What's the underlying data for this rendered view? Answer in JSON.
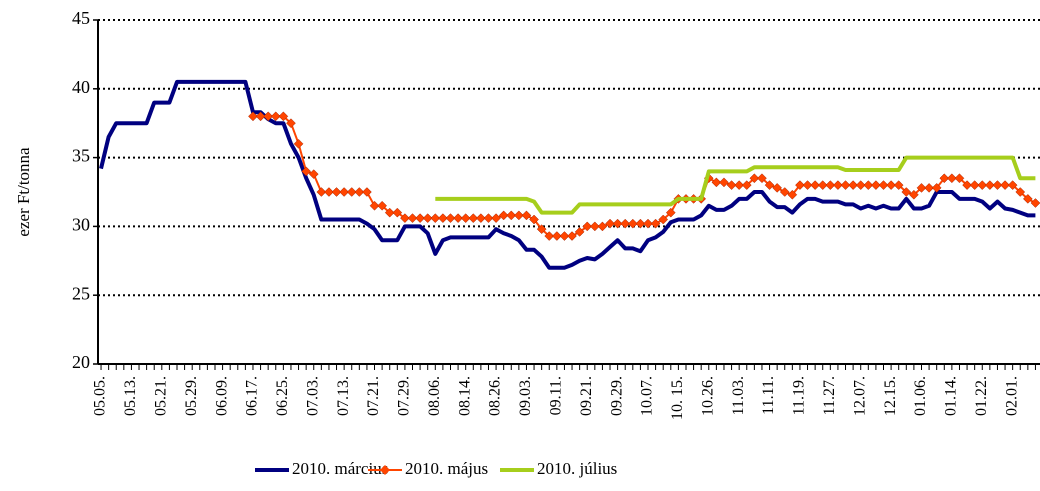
{
  "chart_data": {
    "type": "line",
    "y_label": "ezer Ft/tonna",
    "ylim": [
      20,
      45
    ],
    "yticks": [
      20,
      25,
      30,
      35,
      40,
      45
    ],
    "grid": true,
    "legend": "bottom",
    "categories": [
      "05.05.",
      null,
      null,
      null,
      "05.13.",
      null,
      null,
      null,
      "05.21.",
      null,
      null,
      null,
      "05.29.",
      null,
      null,
      null,
      "06.09.",
      null,
      null,
      null,
      "06.17.",
      null,
      null,
      null,
      "06.25.",
      null,
      null,
      null,
      "07.03.",
      null,
      null,
      null,
      "07.13.",
      null,
      null,
      null,
      "07.21.",
      null,
      null,
      null,
      "07.29.",
      null,
      null,
      null,
      "08.06.",
      null,
      null,
      null,
      "08.14.",
      null,
      null,
      null,
      "08.26.",
      null,
      null,
      null,
      "09.03.",
      null,
      null,
      null,
      "09.11.",
      null,
      null,
      null,
      "09.21.",
      null,
      null,
      null,
      "09.29.",
      null,
      null,
      null,
      "10.07.",
      null,
      null,
      null,
      "10. 15.",
      null,
      null,
      null,
      "10.26.",
      null,
      null,
      null,
      "11.03.",
      null,
      null,
      null,
      "11.11.",
      null,
      null,
      null,
      "11.19.",
      null,
      null,
      null,
      "11.27.",
      null,
      null,
      null,
      "12.07.",
      null,
      null,
      null,
      "12.15.",
      null,
      null,
      null,
      "01.06.",
      null,
      null,
      null,
      "01.14.",
      null,
      null,
      null,
      "01.22.",
      null,
      null,
      null,
      "02.01.",
      null,
      null,
      null
    ],
    "series": [
      {
        "name": "2010. március",
        "color": "#000080",
        "values": [
          34.2,
          36.5,
          37.5,
          37.5,
          37.5,
          37.5,
          37.5,
          39,
          39,
          39,
          40.5,
          40.5,
          40.5,
          40.5,
          40.5,
          40.5,
          40.5,
          40.5,
          40.5,
          40.5,
          38.3,
          38.3,
          37.8,
          37.5,
          37.5,
          36,
          35,
          33.5,
          32.3,
          30.5,
          30.5,
          30.5,
          30.5,
          30.5,
          30.5,
          30.2,
          29.8,
          29,
          29,
          29,
          30,
          30,
          30,
          29.5,
          28,
          29,
          29.2,
          29.2,
          29.2,
          29.2,
          29.2,
          29.2,
          29.8,
          29.5,
          29.3,
          29,
          28.3,
          28.3,
          27.8,
          27,
          27,
          27,
          27.2,
          27.5,
          27.7,
          27.6,
          28,
          28.5,
          29,
          28.4,
          28.4,
          28.2,
          29,
          29.2,
          29.6,
          30.3,
          30.5,
          30.5,
          30.5,
          30.8,
          31.5,
          31.2,
          31.2,
          31.5,
          32,
          32,
          32.5,
          32.5,
          31.8,
          31.4,
          31.4,
          31,
          31.6,
          32,
          32,
          31.8,
          31.8,
          31.8,
          31.6,
          31.6,
          31.3,
          31.5,
          31.3,
          31.5,
          31.3,
          31.3,
          32,
          31.3,
          31.3,
          31.5,
          32.5,
          32.5,
          32.5,
          32,
          32,
          32,
          31.8,
          31.3,
          31.8,
          31.3,
          31.2,
          31,
          30.8,
          30.8
        ]
      },
      {
        "name": "2010. május",
        "color": "#ff4500",
        "marker": "diamond",
        "values": [
          null,
          null,
          null,
          null,
          null,
          null,
          null,
          null,
          null,
          null,
          null,
          null,
          null,
          null,
          null,
          null,
          null,
          null,
          null,
          null,
          38,
          38,
          38,
          38,
          38,
          37.5,
          36,
          34,
          33.8,
          32.5,
          32.5,
          32.5,
          32.5,
          32.5,
          32.5,
          32.5,
          31.5,
          31.5,
          31,
          31,
          30.6,
          30.6,
          30.6,
          30.6,
          30.6,
          30.6,
          30.6,
          30.6,
          30.6,
          30.6,
          30.6,
          30.6,
          30.6,
          30.8,
          30.8,
          30.8,
          30.8,
          30.5,
          29.8,
          29.3,
          29.3,
          29.3,
          29.3,
          29.6,
          30,
          30,
          30,
          30.2,
          30.2,
          30.2,
          30.2,
          30.2,
          30.2,
          30.2,
          30.5,
          31,
          32,
          32,
          32,
          32,
          33.5,
          33.2,
          33.2,
          33,
          33,
          33,
          33.5,
          33.5,
          33,
          32.8,
          32.5,
          32.3,
          33,
          33,
          33,
          33,
          33,
          33,
          33,
          33,
          33,
          33,
          33,
          33,
          33,
          33,
          32.5,
          32.3,
          32.8,
          32.8,
          32.8,
          33.5,
          33.5,
          33.5,
          33,
          33,
          33,
          33,
          33,
          33,
          33,
          32.5,
          32,
          31.7
        ]
      },
      {
        "name": "2010. július",
        "color": "#a6ce1c",
        "values": [
          null,
          null,
          null,
          null,
          null,
          null,
          null,
          null,
          null,
          null,
          null,
          null,
          null,
          null,
          null,
          null,
          null,
          null,
          null,
          null,
          null,
          null,
          null,
          null,
          null,
          null,
          null,
          null,
          null,
          null,
          null,
          null,
          null,
          null,
          null,
          null,
          null,
          null,
          null,
          null,
          null,
          null,
          null,
          null,
          32,
          32,
          32,
          32,
          32,
          32,
          32,
          32,
          32,
          32,
          32,
          32,
          32,
          31.8,
          31,
          31,
          31,
          31,
          31,
          31.6,
          31.6,
          31.6,
          31.6,
          31.6,
          31.6,
          31.6,
          31.6,
          31.6,
          31.6,
          31.6,
          31.6,
          31.6,
          32,
          32,
          32,
          32,
          34,
          34,
          34,
          34,
          34,
          34,
          34.3,
          34.3,
          34.3,
          34.3,
          34.3,
          34.3,
          34.3,
          34.3,
          34.3,
          34.3,
          34.3,
          34.3,
          34.1,
          34.1,
          34.1,
          34.1,
          34.1,
          34.1,
          34.1,
          34.1,
          35,
          35,
          35,
          35,
          35,
          35,
          35,
          35,
          35,
          35,
          35,
          35,
          35,
          35,
          35,
          33.5,
          33.5,
          33.5
        ]
      }
    ]
  }
}
